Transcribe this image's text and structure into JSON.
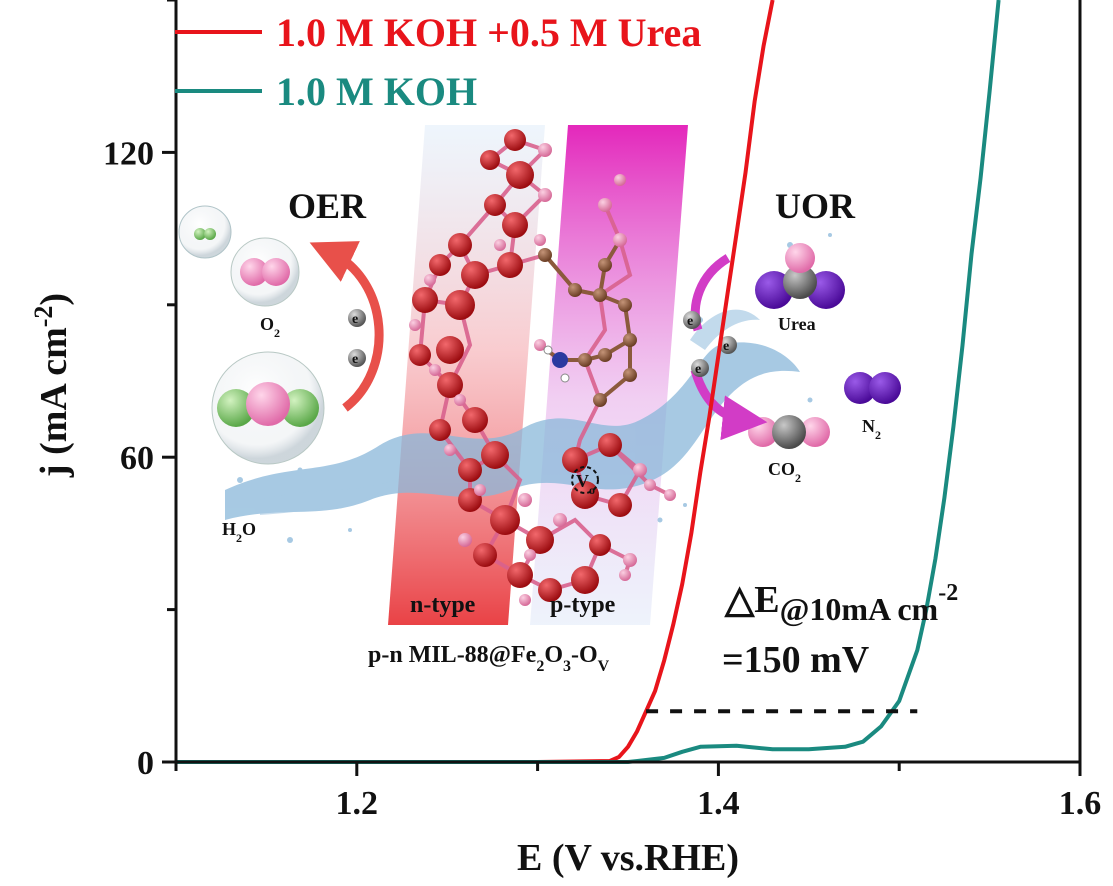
{
  "chart_data": {
    "type": "line",
    "xlabel": "E (V vs.RHE)",
    "ylabel_main": "j (mA cm",
    "ylabel_sup": "-2",
    "ylabel_close": ")",
    "xlim": [
      1.1,
      1.6
    ],
    "ylim": [
      0,
      150
    ],
    "xticks": [
      "1.2",
      "1.4",
      "1.6"
    ],
    "xtick_values": [
      1.2,
      1.4,
      1.6
    ],
    "yticks": [
      "0",
      "60",
      "120"
    ],
    "ytick_values": [
      0,
      60,
      120
    ],
    "legend_placement": "top-left",
    "grid": false,
    "series": [
      {
        "name": "1.0 M KOH +0.5 M Urea",
        "color": "#e8141b",
        "points": [
          [
            1.1,
            0
          ],
          [
            1.3,
            0
          ],
          [
            1.34,
            0.2
          ],
          [
            1.345,
            1
          ],
          [
            1.35,
            3
          ],
          [
            1.355,
            6
          ],
          [
            1.36,
            10
          ],
          [
            1.365,
            14
          ],
          [
            1.37,
            20
          ],
          [
            1.375,
            27
          ],
          [
            1.38,
            35
          ],
          [
            1.385,
            45
          ],
          [
            1.39,
            57
          ],
          [
            1.395,
            68
          ],
          [
            1.4,
            80
          ],
          [
            1.405,
            92
          ],
          [
            1.41,
            104
          ],
          [
            1.415,
            116
          ],
          [
            1.42,
            130
          ],
          [
            1.425,
            141
          ],
          [
            1.43,
            150
          ]
        ]
      },
      {
        "name": "1.0 M KOH",
        "color": "#1a8a80",
        "points": [
          [
            1.1,
            0
          ],
          [
            1.35,
            0
          ],
          [
            1.37,
            0.8
          ],
          [
            1.38,
            2
          ],
          [
            1.39,
            3
          ],
          [
            1.41,
            3.2
          ],
          [
            1.43,
            2.5
          ],
          [
            1.45,
            2.5
          ],
          [
            1.47,
            3
          ],
          [
            1.48,
            4
          ],
          [
            1.49,
            7
          ],
          [
            1.5,
            12
          ],
          [
            1.51,
            22
          ],
          [
            1.515,
            30
          ],
          [
            1.52,
            40
          ],
          [
            1.525,
            52
          ],
          [
            1.53,
            66
          ],
          [
            1.535,
            82
          ],
          [
            1.54,
            100
          ],
          [
            1.545,
            115
          ],
          [
            1.55,
            132
          ],
          [
            1.555,
            150
          ]
        ]
      }
    ],
    "annotation": {
      "delta_symbol": "△E",
      "delta_sub": "@10mA cm",
      "delta_sup": "-2",
      "delta_value": "=150 mV",
      "dashed_from_x": 1.36,
      "dashed_to_x": 1.51,
      "dashed_y": 10
    }
  },
  "illustration": {
    "oer_label": "OER",
    "uor_label": "UOR",
    "o2_label": "O",
    "o2_sub": "2",
    "h2o_label_h": "H",
    "h2o_sub": "2",
    "h2o_label_o": "O",
    "urea_label": "Urea",
    "co2_label": "CO",
    "co2_sub": "2",
    "n2_label": "N",
    "n2_sub": "2",
    "n_type_label": "n-type",
    "p_type_label": "p-type",
    "material_label": "p-n MIL-88@Fe",
    "material_sub1": "2",
    "material_mid": "O",
    "material_sub2": "3",
    "material_end": "-O",
    "material_sub3": "V",
    "vo_label": "V",
    "vo_sub": "o",
    "electron_symbol": "e",
    "colors": {
      "water": "#8ab8da",
      "n_band": "#e8383c",
      "p_band": "#e21cb8",
      "fe_atom": "#c3161c",
      "o_atom": "#eb8cb4",
      "c_atom": "#8b5a3c",
      "n_atom": "#2b3aa0",
      "urea_purple": "#6a1ab8",
      "o2_pink": "#f08cc0",
      "green": "#8fd07a"
    }
  }
}
